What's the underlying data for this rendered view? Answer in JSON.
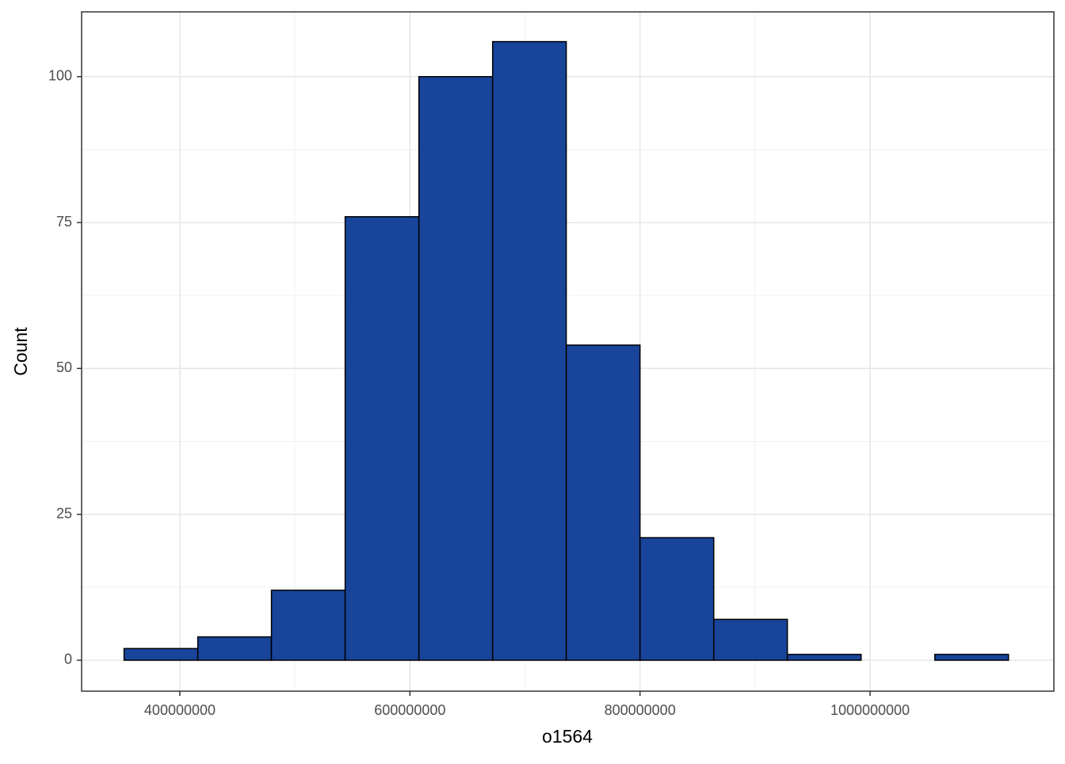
{
  "chart_data": {
    "type": "histogram",
    "x_label": "o1564",
    "y_label": "Count",
    "bins": [
      351500000,
      415600000,
      479600000,
      543700000,
      607800000,
      671900000,
      735900000,
      800000000,
      864100000,
      928100000,
      992200000,
      1056300000,
      1120300000
    ],
    "values": [
      2,
      4,
      12,
      76,
      100,
      106,
      54,
      21,
      7,
      1,
      0,
      1
    ],
    "color": "#18449a",
    "xlim": [
      314600000,
      1159800000
    ],
    "xticks": [
      400000000,
      600000000,
      800000000,
      1000000000
    ],
    "ylim": [
      -5.3,
      111.1
    ],
    "yticks": [
      0,
      25,
      50,
      75,
      100
    ],
    "grid": true
  }
}
